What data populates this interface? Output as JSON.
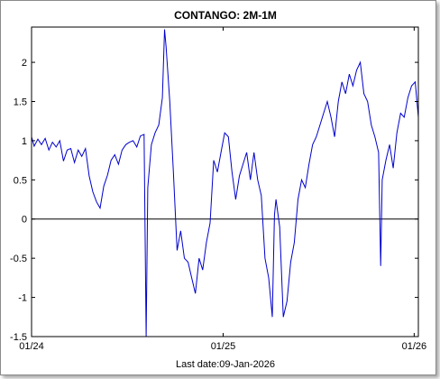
{
  "chart_data": {
    "type": "line",
    "title": "CONTANGO: 2M-1M",
    "footer": "Last date:09-Jan-2026",
    "xlabel": "",
    "ylabel": "",
    "ylim": [
      -1.5,
      2.45
    ],
    "yticks": [
      -1.5,
      -1,
      -0.5,
      0,
      0.5,
      1,
      1.5,
      2
    ],
    "ytick_labels": [
      "-1.5",
      "-1",
      "-0.5",
      "0",
      "0.5",
      "1",
      "1.5",
      "2"
    ],
    "xticks": [
      {
        "date": "2024-01-01",
        "label": "01/24"
      },
      {
        "date": "2025-01-01",
        "label": "01/25"
      },
      {
        "date": "2026-01-01",
        "label": "01/26"
      }
    ],
    "xlim": [
      "2024-01-01",
      "2026-01-09"
    ],
    "grid": false,
    "reference_line": 0,
    "colors": {
      "line": "#0000cc",
      "reference": "#000000",
      "axes": "#000000"
    },
    "series": [
      {
        "name": "",
        "points": [
          [
            "2024-01-01",
            1.05
          ],
          [
            "2024-01-06",
            0.93
          ],
          [
            "2024-01-13",
            1.02
          ],
          [
            "2024-01-20",
            0.95
          ],
          [
            "2024-01-27",
            1.03
          ],
          [
            "2024-02-03",
            0.88
          ],
          [
            "2024-02-10",
            0.98
          ],
          [
            "2024-02-17",
            0.92
          ],
          [
            "2024-02-24",
            1.0
          ],
          [
            "2024-03-02",
            0.74
          ],
          [
            "2024-03-09",
            0.88
          ],
          [
            "2024-03-16",
            0.9
          ],
          [
            "2024-03-23",
            0.72
          ],
          [
            "2024-03-30",
            0.88
          ],
          [
            "2024-04-06",
            0.8
          ],
          [
            "2024-04-13",
            0.9
          ],
          [
            "2024-04-20",
            0.55
          ],
          [
            "2024-04-27",
            0.35
          ],
          [
            "2024-05-04",
            0.22
          ],
          [
            "2024-05-11",
            0.14
          ],
          [
            "2024-05-18",
            0.42
          ],
          [
            "2024-05-25",
            0.56
          ],
          [
            "2024-06-01",
            0.75
          ],
          [
            "2024-06-08",
            0.82
          ],
          [
            "2024-06-15",
            0.7
          ],
          [
            "2024-06-22",
            0.88
          ],
          [
            "2024-06-29",
            0.95
          ],
          [
            "2024-07-06",
            0.98
          ],
          [
            "2024-07-13",
            1.0
          ],
          [
            "2024-07-20",
            0.92
          ],
          [
            "2024-07-27",
            1.06
          ],
          [
            "2024-08-03",
            1.08
          ],
          [
            "2024-08-07",
            -1.5
          ],
          [
            "2024-08-10",
            0.4
          ],
          [
            "2024-08-17",
            0.95
          ],
          [
            "2024-08-24",
            1.1
          ],
          [
            "2024-08-31",
            1.2
          ],
          [
            "2024-09-07",
            1.55
          ],
          [
            "2024-09-11",
            2.42
          ],
          [
            "2024-09-14",
            2.2
          ],
          [
            "2024-09-21",
            1.5
          ],
          [
            "2024-09-28",
            0.6
          ],
          [
            "2024-10-05",
            -0.4
          ],
          [
            "2024-10-12",
            -0.15
          ],
          [
            "2024-10-19",
            -0.5
          ],
          [
            "2024-10-26",
            -0.55
          ],
          [
            "2024-11-02",
            -0.75
          ],
          [
            "2024-11-09",
            -0.95
          ],
          [
            "2024-11-16",
            -0.5
          ],
          [
            "2024-11-23",
            -0.65
          ],
          [
            "2024-11-30",
            -0.3
          ],
          [
            "2024-12-07",
            -0.05
          ],
          [
            "2024-12-14",
            0.75
          ],
          [
            "2024-12-21",
            0.6
          ],
          [
            "2024-12-28",
            0.85
          ],
          [
            "2025-01-04",
            1.1
          ],
          [
            "2025-01-11",
            1.05
          ],
          [
            "2025-01-18",
            0.6
          ],
          [
            "2025-01-25",
            0.25
          ],
          [
            "2025-02-01",
            0.55
          ],
          [
            "2025-02-08",
            0.7
          ],
          [
            "2025-02-15",
            0.85
          ],
          [
            "2025-02-22",
            0.5
          ],
          [
            "2025-03-01",
            0.85
          ],
          [
            "2025-03-08",
            0.5
          ],
          [
            "2025-03-15",
            0.3
          ],
          [
            "2025-03-22",
            -0.5
          ],
          [
            "2025-03-29",
            -0.75
          ],
          [
            "2025-04-05",
            -1.25
          ],
          [
            "2025-04-09",
            0.05
          ],
          [
            "2025-04-12",
            0.25
          ],
          [
            "2025-04-19",
            -0.1
          ],
          [
            "2025-04-26",
            -1.25
          ],
          [
            "2025-05-03",
            -1.05
          ],
          [
            "2025-05-10",
            -0.55
          ],
          [
            "2025-05-17",
            -0.3
          ],
          [
            "2025-05-24",
            0.25
          ],
          [
            "2025-05-31",
            0.5
          ],
          [
            "2025-06-07",
            0.4
          ],
          [
            "2025-06-14",
            0.7
          ],
          [
            "2025-06-21",
            0.95
          ],
          [
            "2025-06-28",
            1.05
          ],
          [
            "2025-07-05",
            1.2
          ],
          [
            "2025-07-12",
            1.35
          ],
          [
            "2025-07-19",
            1.5
          ],
          [
            "2025-07-26",
            1.3
          ],
          [
            "2025-08-02",
            1.05
          ],
          [
            "2025-08-09",
            1.5
          ],
          [
            "2025-08-16",
            1.75
          ],
          [
            "2025-08-23",
            1.6
          ],
          [
            "2025-08-30",
            1.85
          ],
          [
            "2025-09-06",
            1.7
          ],
          [
            "2025-09-13",
            1.9
          ],
          [
            "2025-09-20",
            2.0
          ],
          [
            "2025-09-27",
            1.6
          ],
          [
            "2025-10-04",
            1.5
          ],
          [
            "2025-10-11",
            1.2
          ],
          [
            "2025-10-18",
            1.05
          ],
          [
            "2025-10-25",
            0.85
          ],
          [
            "2025-10-29",
            -0.6
          ],
          [
            "2025-11-01",
            0.5
          ],
          [
            "2025-11-08",
            0.75
          ],
          [
            "2025-11-15",
            0.95
          ],
          [
            "2025-11-22",
            0.65
          ],
          [
            "2025-11-29",
            1.1
          ],
          [
            "2025-12-06",
            1.35
          ],
          [
            "2025-12-13",
            1.3
          ],
          [
            "2025-12-20",
            1.55
          ],
          [
            "2025-12-27",
            1.7
          ],
          [
            "2026-01-03",
            1.75
          ],
          [
            "2026-01-09",
            1.3
          ]
        ]
      }
    ]
  }
}
